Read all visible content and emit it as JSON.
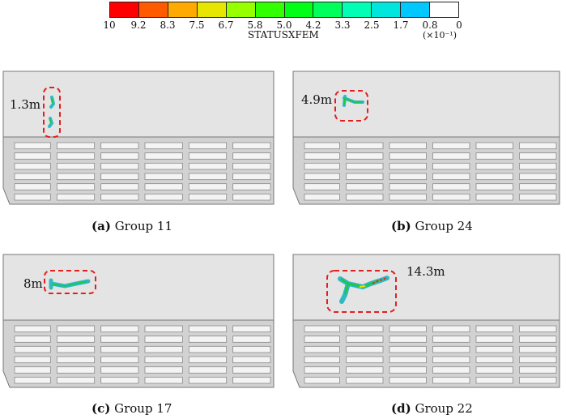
{
  "legend": {
    "title": "STATUSXFEM",
    "unit": "(×10⁻¹)",
    "ticks": [
      "10",
      "9.2",
      "8.3",
      "7.5",
      "6.7",
      "5.8",
      "5.0",
      "4.2",
      "3.3",
      "2.5",
      "1.7",
      "0.8",
      "0"
    ],
    "colors": [
      "#ff0000",
      "#ff5a00",
      "#ffaa00",
      "#e6e600",
      "#96ff00",
      "#32ff00",
      "#00ff14",
      "#00ff5a",
      "#00ffb4",
      "#00e6dc",
      "#00c8ff",
      "#ffffff"
    ]
  },
  "panels": [
    {
      "id": "a",
      "letter": "(a)",
      "group": "Group 11",
      "distance": "1.3m"
    },
    {
      "id": "b",
      "letter": "(b)",
      "group": "Group 24",
      "distance": "4.9m"
    },
    {
      "id": "c",
      "letter": "(c)",
      "group": "Group 17",
      "distance": "8m"
    },
    {
      "id": "d",
      "letter": "(d)",
      "group": "Group 22",
      "distance": "14.3m"
    }
  ],
  "colors": {
    "slab": "#e4e4e4",
    "frame": "#777777",
    "highlight": "#e02020",
    "crack_outer": "#2fb9c4",
    "crack_inner": "#1ec83c"
  }
}
